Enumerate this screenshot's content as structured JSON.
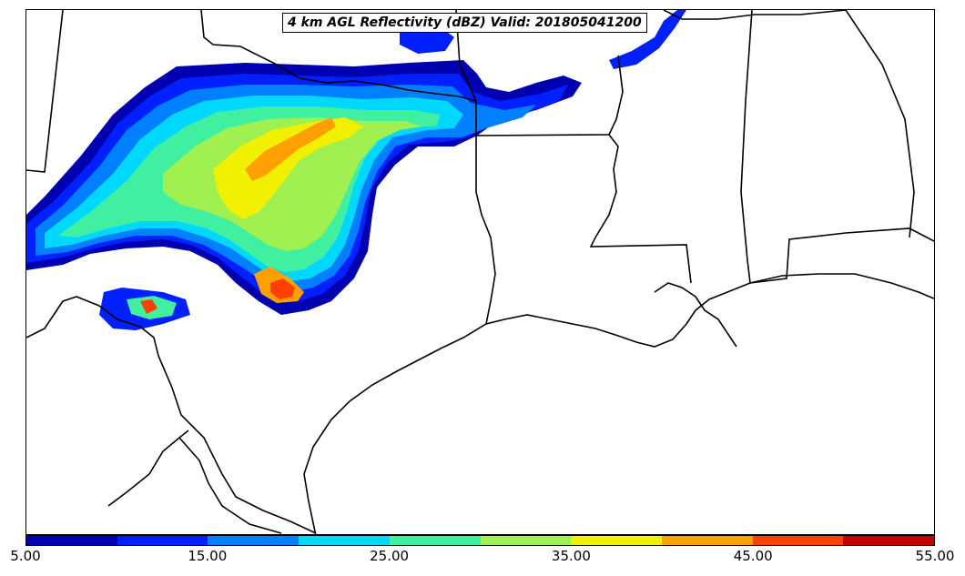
{
  "title": "4 km AGL Reflectivity (dBZ) Valid: 201805041200",
  "colorbar": {
    "colors": [
      "#0000b0",
      "#0020ff",
      "#0080ff",
      "#00d8ff",
      "#40f0a0",
      "#a0f050",
      "#f0f000",
      "#ffa000",
      "#ff4000",
      "#c00000"
    ],
    "tick_labels": [
      "5.00",
      "15.00",
      "25.00",
      "35.00",
      "45.00",
      "55.00"
    ],
    "range": [
      5,
      55
    ],
    "levels": [
      5,
      10,
      15,
      20,
      25,
      30,
      35,
      40,
      45,
      50,
      55
    ]
  }
}
